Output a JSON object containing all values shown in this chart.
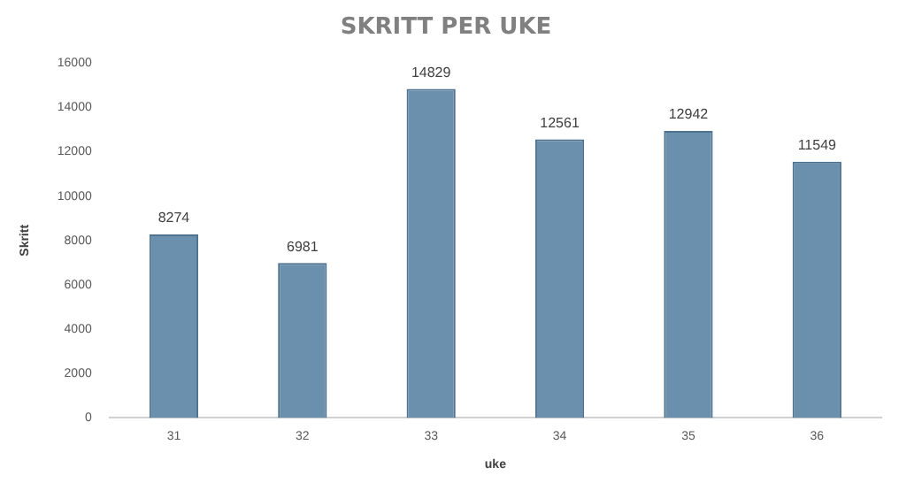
{
  "chart_data": {
    "type": "bar",
    "title": "SKRITT PER UKE",
    "xlabel": "uke",
    "ylabel": "Skritt",
    "categories": [
      "31",
      "32",
      "33",
      "34",
      "35",
      "36"
    ],
    "values": [
      8274,
      6981,
      14829,
      12561,
      12942,
      11549
    ],
    "color": "#6b90ae",
    "ylim": [
      0,
      16000
    ],
    "yticks": [
      0,
      2000,
      4000,
      6000,
      8000,
      10000,
      12000,
      14000,
      16000
    ],
    "grid": false,
    "data_labels": true
  }
}
